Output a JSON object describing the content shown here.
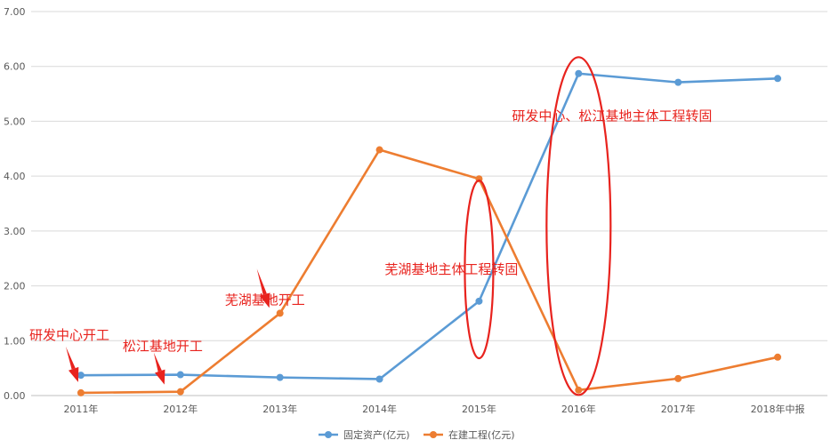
{
  "chart_data": {
    "type": "line",
    "categories": [
      "2011年",
      "2012年",
      "2013年",
      "2014年",
      "2015年",
      "2016年",
      "2017年",
      "2018年中报"
    ],
    "series": [
      {
        "name": "固定资产(亿元)",
        "color": "#5b9bd5",
        "values": [
          0.37,
          0.38,
          0.33,
          0.3,
          1.72,
          5.87,
          5.71,
          5.78
        ]
      },
      {
        "name": "在建工程(亿元)",
        "color": "#ed7d31",
        "values": [
          0.05,
          0.07,
          1.5,
          4.48,
          3.95,
          0.1,
          0.31,
          0.7
        ]
      }
    ],
    "ylim": [
      0,
      7
    ],
    "yticks": [
      "0.00",
      "1.00",
      "2.00",
      "3.00",
      "4.00",
      "5.00",
      "6.00",
      "7.00"
    ],
    "grid": true,
    "legend_position": "bottom",
    "annotations": [
      {
        "text": "研发中心开工",
        "category": "2011年",
        "value": 0.05,
        "arrow": true
      },
      {
        "text": "松江基地开工",
        "category": "2012年",
        "value": 0.07,
        "arrow": true
      },
      {
        "text": "芜湖基地开工",
        "category": "2013年",
        "value": 1.5,
        "arrow": true
      },
      {
        "text": "芜湖基地主体工程转固",
        "category": "2015年",
        "value": 2.3,
        "ellipse": true
      },
      {
        "text": "研发中心、松江基地主体工程转固",
        "category": "2016年",
        "value": 5.1,
        "ellipse": true
      }
    ],
    "annotation_color": "#e8231e"
  }
}
